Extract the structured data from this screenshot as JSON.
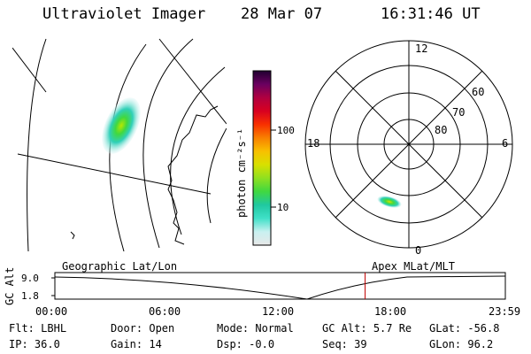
{
  "header": {
    "instrument": "Ultraviolet Imager",
    "date": "28 Mar 07",
    "time": "16:31:46 UT"
  },
  "colorbar": {
    "unit_label": "photon cm⁻²s⁻¹",
    "ticks": [
      {
        "value": 100,
        "label": "100"
      },
      {
        "value": 10,
        "label": "10"
      }
    ],
    "colors": [
      "#e8e8e8",
      "#c8f0f0",
      "#40e0c8",
      "#20c8a0",
      "#40d840",
      "#90e020",
      "#d8e000",
      "#f8c000",
      "#f88000",
      "#f83000",
      "#d80020",
      "#b00040",
      "#6a0060",
      "#200030"
    ]
  },
  "polar_plot": {
    "mlt_labels": {
      "top": "12",
      "left": "18",
      "right": "6",
      "bottom": "0"
    },
    "lat_labels": [
      "60",
      "70",
      "80"
    ]
  },
  "timeline": {
    "axis_title": "GC Alt",
    "y_ticks": [
      "9.0",
      "1.8"
    ],
    "left_label": "Geographic Lat/Lon",
    "right_label": "Apex MLat/MLT",
    "x_ticks": [
      "00:00",
      "06:00",
      "12:00",
      "18:00",
      "23:59"
    ],
    "current_time_fraction": 0.6887,
    "marker_color": "#c00000"
  },
  "status": {
    "row1": [
      {
        "key": "Flt:",
        "value": "LBHL"
      },
      {
        "key": "Door:",
        "value": "Open"
      },
      {
        "key": "Mode:",
        "value": "Normal"
      },
      {
        "key": "GC Alt:",
        "value": "5.7 Re"
      },
      {
        "key": "GLat:",
        "value": "-56.8"
      }
    ],
    "row2": [
      {
        "key": "IP:",
        "value": "36.0"
      },
      {
        "key": "Gain:",
        "value": "14"
      },
      {
        "key": "Dsp:",
        "value": "-0.0"
      },
      {
        "key": "Seq:",
        "value": "39"
      },
      {
        "key": "GLon:",
        "value": "96.2"
      }
    ]
  }
}
